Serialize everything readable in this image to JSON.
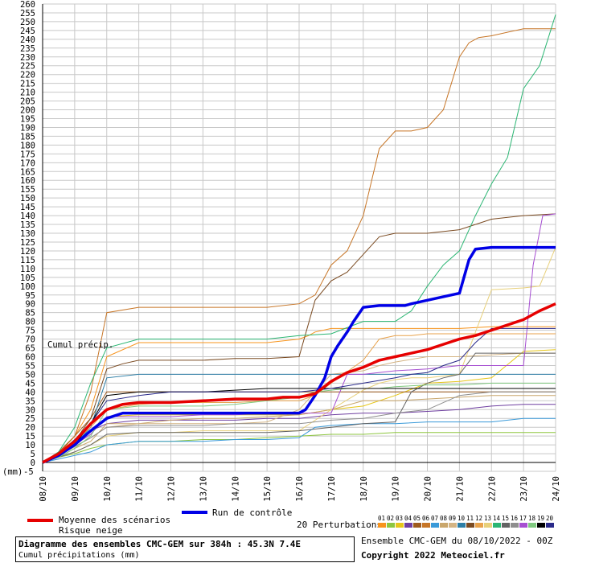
{
  "chart_data": {
    "type": "line",
    "title": "Diagramme des ensembles CMC-GEM sur 384h : 45.3N 7.4E",
    "subtitle": "Cumul précipitations (mm)",
    "ylabel": "(mm)",
    "annotation": "Cumul précip.",
    "ylim": [
      -5,
      260
    ],
    "grid": true,
    "xlim": [
      0,
      16
    ],
    "categories": [
      "08/10",
      "09/10",
      "10/10",
      "11/10",
      "12/10",
      "13/10",
      "14/10",
      "15/10",
      "16/10",
      "17/10",
      "18/10",
      "19/10",
      "20/10",
      "21/10",
      "22/10",
      "23/10",
      "24/10"
    ],
    "yticks": [
      -5,
      0,
      5,
      10,
      15,
      20,
      25,
      30,
      35,
      40,
      45,
      50,
      55,
      60,
      65,
      70,
      75,
      80,
      85,
      90,
      95,
      100,
      105,
      110,
      115,
      120,
      125,
      130,
      135,
      140,
      145,
      150,
      155,
      160,
      165,
      170,
      175,
      180,
      185,
      190,
      195,
      200,
      205,
      210,
      215,
      220,
      225,
      230,
      235,
      240,
      245,
      250,
      255,
      260
    ],
    "mean": {
      "name": "Moyenne des scénarios",
      "color": "#e60000",
      "x": [
        0,
        0.5,
        1,
        1.5,
        2,
        2.5,
        3,
        4,
        5,
        6,
        7,
        7.5,
        8,
        8.5,
        9,
        9.5,
        10,
        10.5,
        11,
        11.5,
        12,
        12.5,
        13,
        13.5,
        14,
        14.5,
        15,
        15.5,
        16
      ],
      "y": [
        0,
        5,
        12,
        22,
        30,
        33,
        34,
        34,
        35,
        36,
        36,
        37,
        37,
        39,
        46,
        51,
        54,
        58,
        60,
        62,
        64,
        67,
        70,
        72,
        75,
        78,
        81,
        86,
        90
      ]
    },
    "control": {
      "name": "Run de contrôle",
      "color": "#0000e6",
      "x": [
        0,
        0.5,
        1,
        1.5,
        2,
        2.5,
        3,
        4,
        5,
        6,
        7,
        7.5,
        8,
        8.2,
        8.5,
        8.8,
        9,
        9.2,
        9.5,
        9.7,
        10,
        10.5,
        11,
        11.3,
        11.5,
        12,
        12.5,
        13,
        13.3,
        13.5,
        14,
        15,
        16
      ],
      "y": [
        0,
        4,
        10,
        18,
        25,
        28,
        28,
        28,
        28,
        28,
        28,
        28,
        28,
        30,
        38,
        48,
        60,
        66,
        74,
        80,
        88,
        89,
        89,
        89,
        90,
        92,
        94,
        96,
        115,
        121,
        122,
        122,
        122
      ]
    },
    "risk_label": "Risque neige",
    "perturbations_label": "20 Perturbations",
    "series": [
      {
        "id": "01",
        "color": "#f7941d",
        "x": [
          0,
          0.5,
          1,
          1.5,
          2,
          3,
          4,
          5,
          6,
          7,
          8,
          8.3,
          8.5,
          9,
          9.5,
          10,
          10.5,
          11,
          12,
          13,
          14,
          15,
          16
        ],
        "y": [
          0,
          5,
          15,
          30,
          60,
          68,
          68,
          68,
          68,
          68,
          70,
          72,
          74,
          76,
          76,
          76,
          76,
          76,
          76,
          76,
          77,
          77,
          77
        ]
      },
      {
        "id": "02",
        "color": "#8dc63f",
        "x": [
          0,
          0.5,
          1,
          1.5,
          2,
          3,
          4,
          5,
          6,
          7,
          8,
          9,
          10,
          11,
          12,
          13,
          14,
          15,
          16
        ],
        "y": [
          0,
          3,
          5,
          8,
          10,
          12,
          12,
          13,
          13,
          14,
          15,
          16,
          16,
          17,
          17,
          17,
          17,
          17,
          17
        ]
      },
      {
        "id": "03",
        "color": "#e6c619",
        "x": [
          0,
          0.5,
          1,
          1.5,
          2,
          3,
          4,
          5,
          6,
          7,
          8,
          9,
          10,
          11,
          12,
          13,
          13.5,
          14,
          15,
          16
        ],
        "y": [
          0,
          4,
          10,
          16,
          26,
          27,
          27,
          27,
          27,
          27,
          27,
          30,
          32,
          38,
          45,
          46,
          47,
          48,
          63,
          64
        ]
      },
      {
        "id": "04",
        "color": "#6f3fa0",
        "x": [
          0,
          0.5,
          1,
          1.5,
          2,
          3,
          4,
          5,
          6,
          7,
          8,
          9,
          10,
          11,
          12,
          13,
          14,
          15,
          16
        ],
        "y": [
          0,
          5,
          10,
          18,
          22,
          24,
          24,
          24,
          24,
          25,
          25,
          27,
          28,
          28,
          29,
          30,
          32,
          33,
          33
        ]
      },
      {
        "id": "05",
        "color": "#9e5b1f",
        "x": [
          0,
          0.5,
          1,
          1.5,
          2,
          3,
          4,
          5,
          6,
          7,
          8,
          9,
          10,
          11,
          12,
          13,
          13.5,
          14,
          15,
          16
        ],
        "y": [
          0,
          6,
          15,
          25,
          40,
          40,
          40,
          40,
          40,
          40,
          40,
          40,
          40,
          40,
          40,
          40,
          40,
          40,
          40,
          40
        ]
      },
      {
        "id": "06",
        "color": "#c77526",
        "x": [
          0,
          0.5,
          1,
          1.5,
          2,
          3,
          4,
          5,
          6,
          7,
          8,
          8.5,
          9,
          9.5,
          10,
          10.5,
          11,
          11.5,
          12,
          12.5,
          13,
          13.3,
          13.6,
          14,
          15,
          16
        ],
        "y": [
          0,
          5,
          15,
          40,
          85,
          88,
          88,
          88,
          88,
          88,
          90,
          95,
          112,
          120,
          140,
          178,
          188,
          188,
          190,
          200,
          230,
          238,
          241,
          242,
          246,
          246
        ]
      },
      {
        "id": "07",
        "color": "#3a9ad9",
        "x": [
          0,
          0.5,
          1,
          1.5,
          2,
          3,
          4,
          5,
          6,
          7,
          8,
          8.5,
          9,
          10,
          11,
          12,
          13,
          14,
          15,
          16
        ],
        "y": [
          0,
          2,
          4,
          6,
          10,
          12,
          12,
          12,
          13,
          13,
          14,
          20,
          21,
          22,
          22,
          23,
          23,
          23,
          25,
          25
        ]
      },
      {
        "id": "08",
        "color": "#c9a66b",
        "x": [
          0,
          0.5,
          1,
          1.5,
          2,
          3,
          4,
          5,
          6,
          7,
          8,
          9,
          10,
          11,
          12,
          13,
          14,
          15,
          16
        ],
        "y": [
          0,
          3,
          8,
          12,
          22,
          22,
          24,
          25,
          25,
          26,
          27,
          30,
          35,
          35,
          36,
          37,
          38,
          38,
          38
        ]
      },
      {
        "id": "09",
        "color": "#d4b483",
        "x": [
          0,
          0.5,
          1,
          1.5,
          2,
          3,
          4,
          5,
          6,
          7,
          8,
          9,
          10,
          10.5,
          11,
          12,
          13,
          14,
          15,
          16
        ],
        "y": [
          0,
          4,
          9,
          14,
          20,
          22,
          22,
          22,
          22,
          23,
          30,
          50,
          52,
          55,
          57,
          60,
          60,
          61,
          62,
          62
        ]
      },
      {
        "id": "10",
        "color": "#2d7ea6",
        "x": [
          0,
          0.5,
          1,
          1.5,
          2,
          3,
          4,
          5,
          6,
          7,
          8,
          9,
          10,
          11,
          12,
          13,
          14,
          15,
          16
        ],
        "y": [
          0,
          4,
          10,
          20,
          48,
          50,
          50,
          50,
          50,
          50,
          50,
          50,
          50,
          50,
          50,
          50,
          50,
          50,
          50
        ]
      },
      {
        "id": "11",
        "color": "#7a4a21",
        "x": [
          0,
          0.5,
          1,
          1.5,
          2,
          2.5,
          3,
          4,
          5,
          6,
          7,
          8,
          8.5,
          9,
          9.5,
          10,
          10.5,
          11,
          12,
          13,
          14,
          15,
          16
        ],
        "y": [
          0,
          5,
          12,
          25,
          53,
          56,
          58,
          58,
          58,
          59,
          59,
          60,
          92,
          103,
          108,
          118,
          128,
          130,
          130,
          132,
          138,
          140,
          141
        ]
      },
      {
        "id": "12",
        "color": "#e8a24b",
        "x": [
          0,
          0.5,
          1,
          1.5,
          2,
          3,
          4,
          5,
          6,
          7,
          8,
          8.5,
          9,
          10,
          10.5,
          11,
          11.5,
          12,
          13,
          14,
          15,
          16
        ],
        "y": [
          0,
          4,
          12,
          20,
          30,
          33,
          34,
          34,
          34,
          35,
          35,
          38,
          45,
          58,
          70,
          72,
          72,
          73,
          73,
          73,
          73,
          73
        ]
      },
      {
        "id": "13",
        "color": "#e8d07a",
        "x": [
          0,
          0.5,
          1,
          1.5,
          2,
          3,
          4,
          5,
          6,
          7,
          8,
          9,
          10,
          10.5,
          11,
          11.5,
          12,
          13,
          14,
          15,
          15.5,
          16
        ],
        "y": [
          0,
          3,
          6,
          10,
          15,
          17,
          17,
          18,
          18,
          18,
          18,
          30,
          41,
          45,
          47,
          48,
          48,
          50,
          98,
          99,
          100,
          122
        ]
      },
      {
        "id": "14",
        "color": "#2bb673",
        "x": [
          0,
          0.5,
          1,
          1.5,
          2,
          3,
          4,
          5,
          6,
          7,
          8,
          9,
          10,
          10.5,
          11,
          11.5,
          12,
          12.5,
          13,
          13.5,
          14,
          14.5,
          15,
          15.5,
          16
        ],
        "y": [
          0,
          6,
          20,
          45,
          65,
          70,
          70,
          70,
          70,
          70,
          72,
          73,
          80,
          80,
          80,
          86,
          100,
          112,
          120,
          140,
          158,
          173,
          212,
          225,
          254
        ]
      },
      {
        "id": "15",
        "color": "#636363",
        "x": [
          0,
          0.5,
          1,
          1.5,
          2,
          3,
          4,
          5,
          6,
          7,
          8,
          9,
          10,
          11,
          11.5,
          12,
          12.5,
          13,
          13.5,
          14,
          15,
          16
        ],
        "y": [
          0,
          3,
          6,
          10,
          16,
          17,
          17,
          17,
          17,
          17,
          18,
          20,
          22,
          23,
          40,
          45,
          48,
          50,
          62,
          62,
          62,
          62
        ]
      },
      {
        "id": "16",
        "color": "#8e8e8e",
        "x": [
          0,
          0.5,
          1,
          1.5,
          2,
          3,
          4,
          5,
          6,
          7,
          8,
          9,
          10,
          11,
          12,
          13,
          14,
          15,
          16
        ],
        "y": [
          0,
          4,
          9,
          14,
          20,
          21,
          21,
          21,
          22,
          22,
          22,
          24,
          25,
          28,
          30,
          38,
          40,
          40,
          40
        ]
      },
      {
        "id": "17",
        "color": "#a64fd1",
        "x": [
          0,
          0.5,
          1,
          1.5,
          2,
          3,
          4,
          5,
          6,
          7,
          8,
          9,
          9.5,
          10,
          11,
          12,
          13,
          14,
          15,
          15.3,
          15.6,
          16
        ],
        "y": [
          0,
          4,
          10,
          16,
          26,
          26,
          26,
          27,
          27,
          28,
          28,
          28,
          50,
          50,
          52,
          53,
          55,
          55,
          55,
          112,
          140,
          141
        ]
      },
      {
        "id": "18",
        "color": "#7fc97f",
        "x": [
          0,
          0.5,
          1,
          1.5,
          2,
          3,
          4,
          5,
          6,
          7,
          8,
          8.5,
          9,
          9.5,
          10,
          10.5,
          11,
          12,
          13,
          14,
          15,
          16
        ],
        "y": [
          0,
          3,
          8,
          15,
          30,
          32,
          32,
          32,
          33,
          35,
          37,
          40,
          41,
          42,
          42,
          42,
          43,
          44,
          44,
          45,
          45,
          45
        ]
      },
      {
        "id": "19",
        "color": "#000000",
        "x": [
          0,
          0.5,
          1,
          1.5,
          2,
          3,
          4,
          5,
          6,
          7,
          8,
          9,
          9.5,
          10,
          11,
          12,
          12.5,
          13,
          14,
          15,
          16
        ],
        "y": [
          0,
          4,
          10,
          22,
          38,
          40,
          40,
          40,
          41,
          42,
          42,
          42,
          42,
          42,
          42,
          42,
          42,
          42,
          42,
          42,
          42
        ]
      },
      {
        "id": "20",
        "color": "#2a2a8a",
        "x": [
          0,
          0.5,
          1,
          1.5,
          2,
          3,
          4,
          5,
          6,
          7,
          8,
          9,
          10,
          11,
          11.5,
          12,
          12.5,
          13,
          13.5,
          14,
          15,
          16
        ],
        "y": [
          0,
          5,
          13,
          22,
          35,
          38,
          40,
          40,
          40,
          40,
          40,
          42,
          45,
          48,
          50,
          51,
          55,
          58,
          68,
          76,
          76,
          76
        ]
      }
    ]
  },
  "legend": {
    "mean_label": "Moyenne des scénarios",
    "risk_label": "Risque neige",
    "control_label": "Run de contrôle",
    "perturbations_label": "20 Perturbations",
    "perturbation_ids": [
      "01",
      "02",
      "03",
      "04",
      "05",
      "06",
      "07",
      "08",
      "09",
      "10",
      "11",
      "12",
      "13",
      "14",
      "15",
      "16",
      "17",
      "18",
      "19",
      "20"
    ]
  },
  "caption": {
    "title": "Diagramme des ensembles CMC-GEM sur 384h : 45.3N 7.4E",
    "subtitle": "Cumul précipitations (mm)"
  },
  "footer": {
    "run_info": "Ensemble CMC-GEM du 08/10/2022 - 00Z",
    "copyright": "Copyright 2022 Meteociel.fr"
  }
}
